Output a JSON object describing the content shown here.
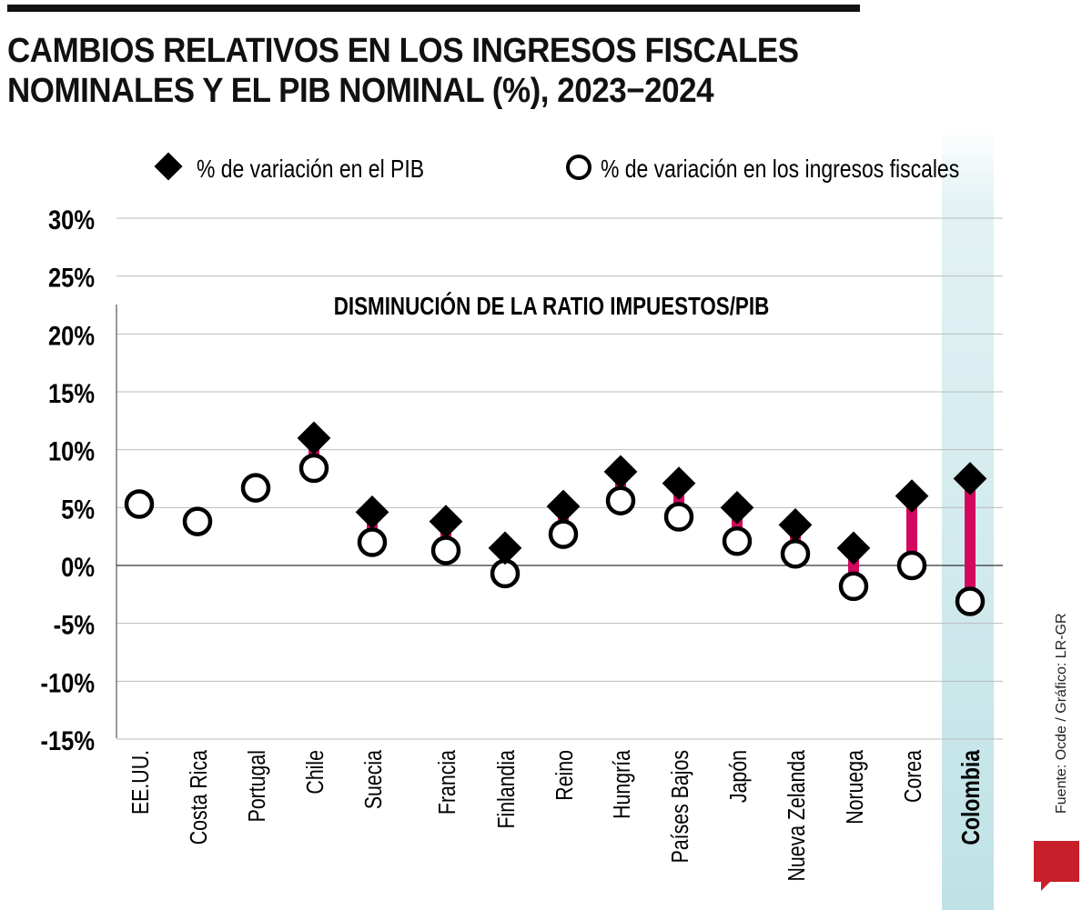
{
  "title": "CAMBIOS RELATIVOS EN LOS INGRESOS FISCALES NOMINALES Y EL PIB NOMINAL (%), 2023−2024",
  "source": "Fuente: Ocde / Gráfico: LR-GR",
  "logo": "LR",
  "chart_data": {
    "type": "scatter",
    "title": "CAMBIOS RELATIVOS EN LOS INGRESOS FISCALES NOMINALES Y EL PIB NOMINAL (%), 2023−2024",
    "annotation": "DISMINUCIÓN DE LA RATIO IMPUESTOS/PIB",
    "ylim": [
      -15,
      30
    ],
    "yticks": [
      "30%",
      "25%",
      "20%",
      "15%",
      "10%",
      "5%",
      "0%",
      "-5%",
      "-10%",
      "-15%"
    ],
    "ytick_values": [
      30,
      25,
      20,
      15,
      10,
      5,
      0,
      -5,
      -10,
      -15
    ],
    "grid": true,
    "legend_placement": "top",
    "highlight": "Colombia",
    "colors": {
      "connector": "#d4075e",
      "highlight_band": "#cfe9ec",
      "marker": "#000000"
    },
    "categories": [
      "EE.UU.",
      "Costa Rica",
      "Portugal",
      "Chile",
      "Suecia",
      "Francia",
      "Finlandia",
      "Reino",
      "Hungría",
      "Países Bajos",
      "Japón",
      "Nueva Zelanda",
      "Noruega",
      "Corea",
      "Colombia"
    ],
    "series": [
      {
        "name": "% de variación en el PIB",
        "marker": "diamond",
        "values": [
          null,
          null,
          null,
          11.0,
          4.6,
          3.8,
          1.5,
          5.1,
          8.1,
          7.1,
          5.0,
          3.5,
          1.5,
          6.0,
          7.5
        ]
      },
      {
        "name": "% de variación en los ingresos fiscales",
        "marker": "circle",
        "values": [
          5.3,
          3.8,
          6.7,
          8.4,
          2.0,
          1.3,
          -0.7,
          2.7,
          5.6,
          4.2,
          2.1,
          1.0,
          -1.8,
          0.0,
          -3.1
        ]
      }
    ]
  }
}
